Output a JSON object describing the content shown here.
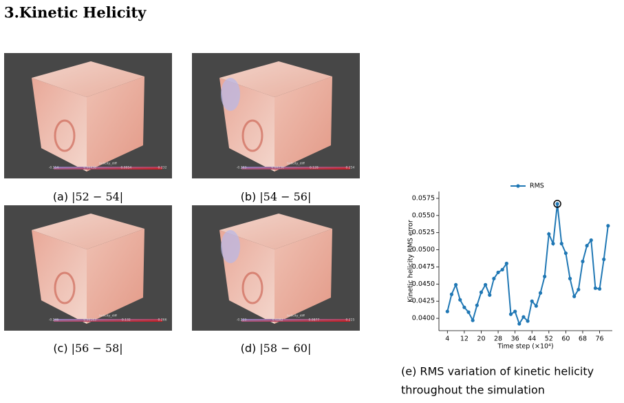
{
  "heading": "3.Kinetic Helicity",
  "panels": [
    {
      "label": "(a)",
      "range": "|52 − 54|",
      "colorbar": {
        "title": "helicity_diff",
        "ticks": [
          "-0.114",
          "0.00438",
          "0.0954",
          "0.232"
        ]
      }
    },
    {
      "label": "(b)",
      "range": "|54 − 56|",
      "colorbar": {
        "title": "helicity_diff",
        "ticks": [
          "-0.203",
          "0.00236",
          "0.128",
          "0.254"
        ]
      }
    },
    {
      "label": "(c)",
      "range": "|56 − 58|",
      "colorbar": {
        "title": "helicity_diff",
        "ticks": [
          "-0.246",
          "0.00163",
          "0.132",
          "0.266"
        ]
      }
    },
    {
      "label": "(d)",
      "range": "|58 − 60|",
      "colorbar": {
        "title": "helicity_diff",
        "ticks": [
          "-0.223",
          "0.0282",
          "0.0877",
          "0.225"
        ]
      }
    }
  ],
  "chart_caption": [
    "(e) RMS variation of kinetic helicity",
    "throughout the simulation"
  ],
  "chart_data": {
    "type": "line",
    "x_label": "Time step (×10⁴)",
    "y_label": "Kinetic helicity RMS error",
    "x": [
      4,
      6,
      8,
      10,
      12,
      14,
      16,
      18,
      20,
      22,
      24,
      26,
      28,
      30,
      32,
      34,
      36,
      38,
      40,
      42,
      44,
      46,
      48,
      50,
      52,
      54,
      56,
      58,
      60,
      62,
      64,
      66,
      68,
      70,
      72,
      74,
      76,
      78,
      80
    ],
    "series": [
      {
        "name": "RMS",
        "color": "#1f77b4",
        "values": [
          0.041,
          0.0435,
          0.0449,
          0.0427,
          0.0416,
          0.0409,
          0.0397,
          0.0419,
          0.0438,
          0.0449,
          0.0434,
          0.0458,
          0.0467,
          0.0471,
          0.048,
          0.0406,
          0.041,
          0.0392,
          0.0402,
          0.0396,
          0.0425,
          0.0418,
          0.0437,
          0.0461,
          0.0523,
          0.0509,
          0.0567,
          0.0509,
          0.0495,
          0.0458,
          0.0432,
          0.0442,
          0.0483,
          0.0506,
          0.0514,
          0.0444,
          0.0443,
          0.0486,
          0.0535
        ]
      }
    ],
    "highlight_x": 56,
    "xlim": [
      0,
      82
    ],
    "ylim": [
      0.0382,
      0.0585
    ],
    "xticks": [
      4,
      12,
      20,
      28,
      36,
      44,
      52,
      60,
      68,
      76
    ],
    "yticks": [
      {
        "value": 0.04,
        "label": "0.0400"
      },
      0.0425,
      {
        "value": 0.045,
        "label": "0.0450"
      },
      0.0475,
      {
        "value": 0.05,
        "label": "0.0500"
      },
      0.0525,
      {
        "value": 0.055,
        "label": "0.0550"
      },
      0.0575
    ],
    "legend": "top"
  }
}
